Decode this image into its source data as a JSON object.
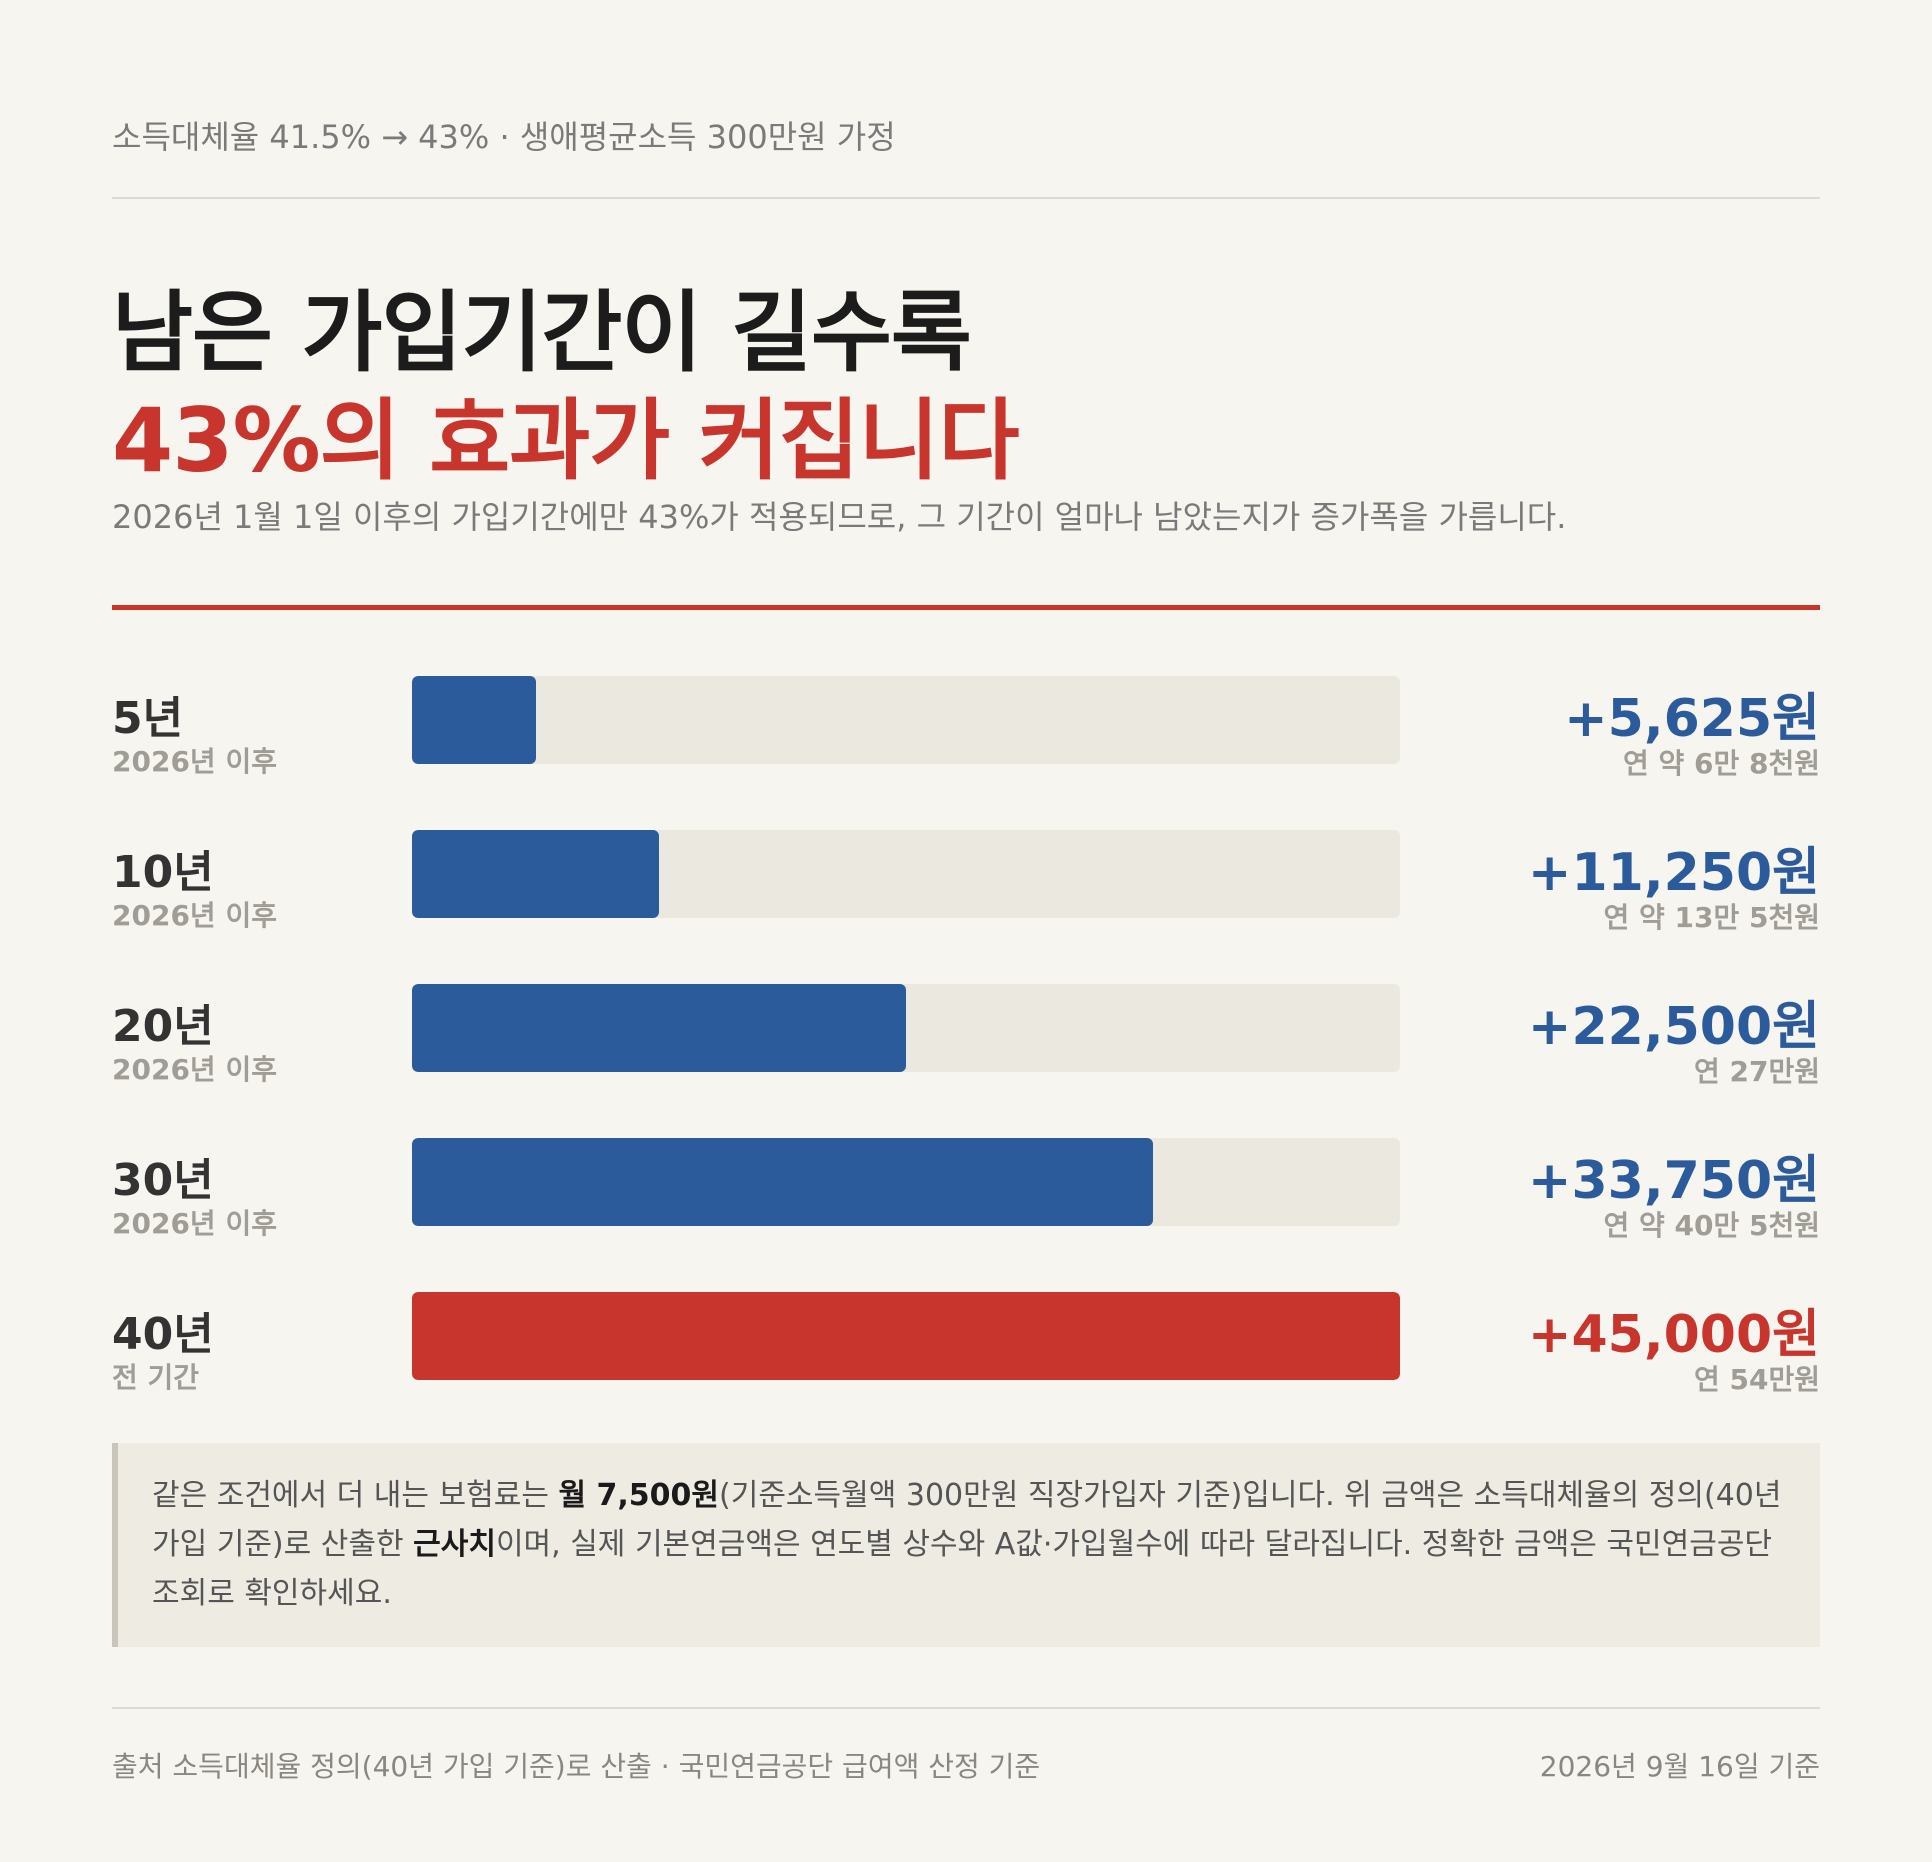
{
  "header": {
    "kicker": "소득대체율 41.5% → 43% · 생애평균소득 300만원 가정",
    "title_line1": "남은 가입기간이 길수록",
    "title_line2": "43%의 효과가 커집니다",
    "subtitle": "2026년 1월 1일 이후의 가입기간에만 43%가 적용되므로, 그 기간이 얼마나 남았는지가 증가폭을 가릅니다."
  },
  "chart_data": {
    "type": "bar",
    "orientation": "horizontal",
    "categories": [
      "5년",
      "10년",
      "20년",
      "30년",
      "40년"
    ],
    "category_subtitles": [
      "2026년 이후",
      "2026년 이후",
      "2026년 이후",
      "2026년 이후",
      "전 기간"
    ],
    "values": [
      5625,
      11250,
      22500,
      33750,
      45000
    ],
    "value_labels": [
      "+5,625원",
      "+11,250원",
      "+22,500원",
      "+33,750원",
      "+45,000원"
    ],
    "annual_labels": [
      "연 약 6만 8천원",
      "연 약 13만 5천원",
      "연 27만원",
      "연 약 40만 5천원",
      "연 54만원"
    ],
    "xlim": [
      0,
      45000
    ],
    "highlight_index": 4,
    "colors": {
      "bar": "#2c5b9b",
      "highlight": "#c8352d",
      "track": "#ebe8e0"
    }
  },
  "note": {
    "part1": "같은 조건에서 더 내는 보험료는 ",
    "bold1": "월 7,500원",
    "part2": "(기준소득월액 300만원 직장가입자 기준)입니다. 위 금액은 소득대체율의 정의(40년 가입 기준)로 산출한 ",
    "bold2": "근사치",
    "part3": "이며, 실제 기본연금액은 연도별 상수와 A값·가입월수에 따라 달라집니다. 정확한 금액은 국민연금공단 조회로 확인하세요."
  },
  "footer": {
    "source": "출처 소득대체율 정의(40년 가입 기준)로 산출 · 국민연금공단 급여액 산정 기준",
    "date": "2026년 9월 16일 기준"
  }
}
